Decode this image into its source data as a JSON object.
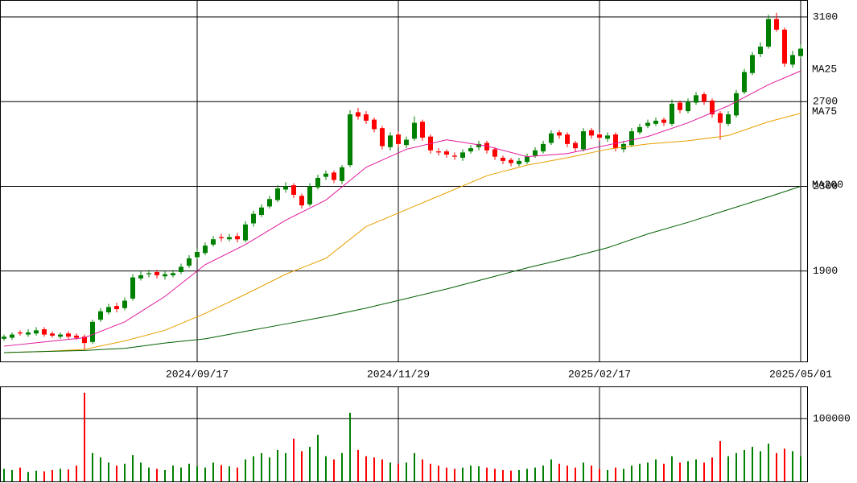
{
  "chart_data": [
    {
      "type": "candlestick",
      "up_color": "#008000",
      "down_color": "#ff0000",
      "categories": [
        null,
        null,
        null,
        null,
        null,
        null,
        null,
        null,
        null,
        null,
        null,
        null,
        null,
        null,
        null,
        null,
        null,
        null,
        null,
        null,
        null,
        null,
        null,
        null,
        "2024/09/17",
        null,
        null,
        null,
        null,
        null,
        null,
        null,
        null,
        null,
        null,
        null,
        null,
        null,
        null,
        null,
        null,
        null,
        null,
        null,
        null,
        null,
        null,
        null,
        null,
        "2024/11/29",
        null,
        null,
        null,
        null,
        null,
        null,
        null,
        null,
        null,
        null,
        null,
        null,
        null,
        null,
        null,
        null,
        null,
        null,
        null,
        null,
        null,
        null,
        null,
        null,
        "2025/02/17",
        null,
        null,
        null,
        null,
        null,
        null,
        null,
        null,
        null,
        null,
        null,
        null,
        null,
        null,
        null,
        null,
        null,
        null,
        null,
        null,
        null,
        null,
        null,
        null,
        "2025/05/01"
      ],
      "open": [
        1580,
        1585,
        1610,
        1600,
        1605,
        1625,
        1605,
        1590,
        1605,
        1595,
        1590,
        1565,
        1670,
        1705,
        1735,
        1725,
        1770,
        1865,
        1885,
        1895,
        1875,
        1880,
        1895,
        1925,
        1965,
        1985,
        2025,
        2060,
        2050,
        2065,
        2045,
        2125,
        2165,
        2205,
        2235,
        2285,
        2305,
        2255,
        2215,
        2295,
        2345,
        2365,
        2325,
        2400,
        2650,
        2640,
        2615,
        2575,
        2485,
        2545,
        2495,
        2525,
        2605,
        2535,
        2465,
        2465,
        2445,
        2435,
        2465,
        2485,
        2505,
        2475,
        2435,
        2425,
        2405,
        2415,
        2445,
        2465,
        2505,
        2555,
        2545,
        2505,
        2475,
        2565,
        2545,
        2525,
        2545,
        2475,
        2495,
        2555,
        2585,
        2595,
        2615,
        2595,
        2695,
        2655,
        2695,
        2735,
        2705,
        2645,
        2595,
        2635,
        2745,
        2835,
        2925,
        2960,
        3090,
        3040,
        2875,
        2915
      ],
      "high": [
        1600,
        1610,
        1620,
        1625,
        1635,
        1635,
        1615,
        1610,
        1615,
        1605,
        1600,
        1670,
        1725,
        1745,
        1750,
        1775,
        1885,
        1900,
        1905,
        1905,
        1900,
        1905,
        1935,
        1975,
        2005,
        2035,
        2065,
        2075,
        2075,
        2080,
        2135,
        2185,
        2215,
        2255,
        2305,
        2320,
        2315,
        2265,
        2315,
        2355,
        2375,
        2375,
        2400,
        2660,
        2670,
        2655,
        2625,
        2585,
        2555,
        2560,
        2535,
        2630,
        2615,
        2545,
        2480,
        2475,
        2460,
        2475,
        2495,
        2515,
        2515,
        2485,
        2445,
        2435,
        2435,
        2455,
        2485,
        2515,
        2565,
        2565,
        2555,
        2515,
        2575,
        2575,
        2555,
        2555,
        2555,
        2515,
        2575,
        2595,
        2615,
        2625,
        2625,
        2710,
        2705,
        2715,
        2745,
        2745,
        2715,
        2655,
        2655,
        2755,
        2855,
        2935,
        2980,
        3110,
        3120,
        3050,
        2940,
        2970
      ],
      "low": [
        1570,
        1575,
        1595,
        1590,
        1595,
        1590,
        1585,
        1580,
        1580,
        1575,
        1525,
        1555,
        1660,
        1695,
        1705,
        1715,
        1760,
        1855,
        1870,
        1865,
        1860,
        1870,
        1885,
        1915,
        1955,
        1975,
        2015,
        2040,
        2040,
        2035,
        2035,
        2110,
        2155,
        2195,
        2225,
        2270,
        2245,
        2195,
        2205,
        2285,
        2330,
        2315,
        2310,
        2390,
        2615,
        2595,
        2555,
        2475,
        2470,
        2485,
        2480,
        2515,
        2515,
        2455,
        2445,
        2435,
        2425,
        2420,
        2455,
        2470,
        2455,
        2425,
        2405,
        2395,
        2395,
        2405,
        2435,
        2455,
        2495,
        2525,
        2485,
        2465,
        2465,
        2525,
        2515,
        2510,
        2465,
        2460,
        2485,
        2545,
        2575,
        2585,
        2585,
        2585,
        2645,
        2645,
        2685,
        2685,
        2625,
        2520,
        2585,
        2625,
        2735,
        2825,
        2910,
        2950,
        3030,
        2865,
        2860,
        2905
      ],
      "close": [
        1590,
        1600,
        1605,
        1610,
        1620,
        1600,
        1595,
        1600,
        1590,
        1585,
        1560,
        1660,
        1710,
        1730,
        1720,
        1760,
        1870,
        1880,
        1890,
        1880,
        1885,
        1890,
        1920,
        1960,
        1990,
        2020,
        2050,
        2055,
        2060,
        2050,
        2120,
        2170,
        2200,
        2240,
        2290,
        2300,
        2260,
        2210,
        2300,
        2340,
        2360,
        2330,
        2390,
        2640,
        2630,
        2610,
        2570,
        2490,
        2540,
        2500,
        2520,
        2600,
        2530,
        2470,
        2460,
        2450,
        2440,
        2460,
        2480,
        2500,
        2470,
        2440,
        2420,
        2410,
        2420,
        2440,
        2470,
        2500,
        2550,
        2540,
        2500,
        2480,
        2560,
        2540,
        2530,
        2540,
        2480,
        2500,
        2560,
        2580,
        2600,
        2610,
        2600,
        2690,
        2660,
        2700,
        2730,
        2700,
        2640,
        2600,
        2640,
        2740,
        2840,
        2920,
        2960,
        3090,
        3040,
        2880,
        2920,
        2950
      ],
      "series": [
        {
          "name": "MA25",
          "color": "#e0189c",
          "x": [
            0,
            5,
            10,
            15,
            20,
            25,
            30,
            35,
            40,
            45,
            50,
            55,
            60,
            65,
            70,
            75,
            80,
            85,
            90,
            95,
            99
          ],
          "values": [
            1545,
            1565,
            1585,
            1660,
            1780,
            1930,
            2025,
            2140,
            2235,
            2390,
            2475,
            2520,
            2490,
            2440,
            2455,
            2495,
            2535,
            2600,
            2680,
            2780,
            2845
          ]
        },
        {
          "name": "MA75",
          "color": "#e8a000",
          "x": [
            0,
            5,
            10,
            15,
            20,
            25,
            30,
            35,
            40,
            45,
            50,
            55,
            60,
            65,
            70,
            75,
            80,
            85,
            90,
            95,
            99
          ],
          "values": [
            1515,
            1520,
            1530,
            1570,
            1620,
            1700,
            1790,
            1885,
            1960,
            2110,
            2190,
            2270,
            2350,
            2400,
            2435,
            2475,
            2500,
            2515,
            2540,
            2605,
            2645
          ]
        },
        {
          "name": "MA200",
          "color": "#006000",
          "x": [
            0,
            5,
            10,
            15,
            20,
            25,
            30,
            35,
            40,
            45,
            50,
            55,
            60,
            65,
            70,
            75,
            80,
            85,
            90,
            95,
            99
          ],
          "values": [
            1515,
            1520,
            1525,
            1535,
            1560,
            1580,
            1615,
            1650,
            1685,
            1725,
            1770,
            1815,
            1865,
            1915,
            1960,
            2010,
            2075,
            2130,
            2190,
            2250,
            2300
          ]
        }
      ],
      "ylim": [
        1473,
        3180
      ],
      "yticks": [
        1900,
        2300,
        2700,
        3100
      ],
      "grid": true
    },
    {
      "type": "bar",
      "values": [
        20000,
        18000,
        22000,
        15000,
        17000,
        16000,
        18000,
        20000,
        19000,
        25000,
        141000,
        45000,
        38000,
        30000,
        25000,
        28000,
        42000,
        30000,
        22000,
        20000,
        18000,
        25000,
        22000,
        28000,
        24000,
        22000,
        30000,
        26000,
        24000,
        22000,
        35000,
        40000,
        45000,
        38000,
        50000,
        45000,
        68000,
        48000,
        55000,
        74000,
        40000,
        35000,
        45000,
        109000,
        50000,
        40000,
        38000,
        35000,
        30000,
        28000,
        30000,
        45000,
        35000,
        28000,
        25000,
        22000,
        20000,
        22000,
        25000,
        24000,
        22000,
        20000,
        18000,
        17000,
        18000,
        20000,
        22000,
        25000,
        35000,
        28000,
        25000,
        22000,
        30000,
        25000,
        20000,
        18000,
        22000,
        20000,
        25000,
        28000,
        30000,
        35000,
        28000,
        40000,
        30000,
        32000,
        35000,
        30000,
        38000,
        64000,
        40000,
        45000,
        50000,
        55000,
        48000,
        60000,
        45000,
        52000,
        48000,
        40000
      ],
      "ylim": [
        0,
        151000
      ],
      "yticks": [
        100000
      ],
      "grid": true
    }
  ]
}
